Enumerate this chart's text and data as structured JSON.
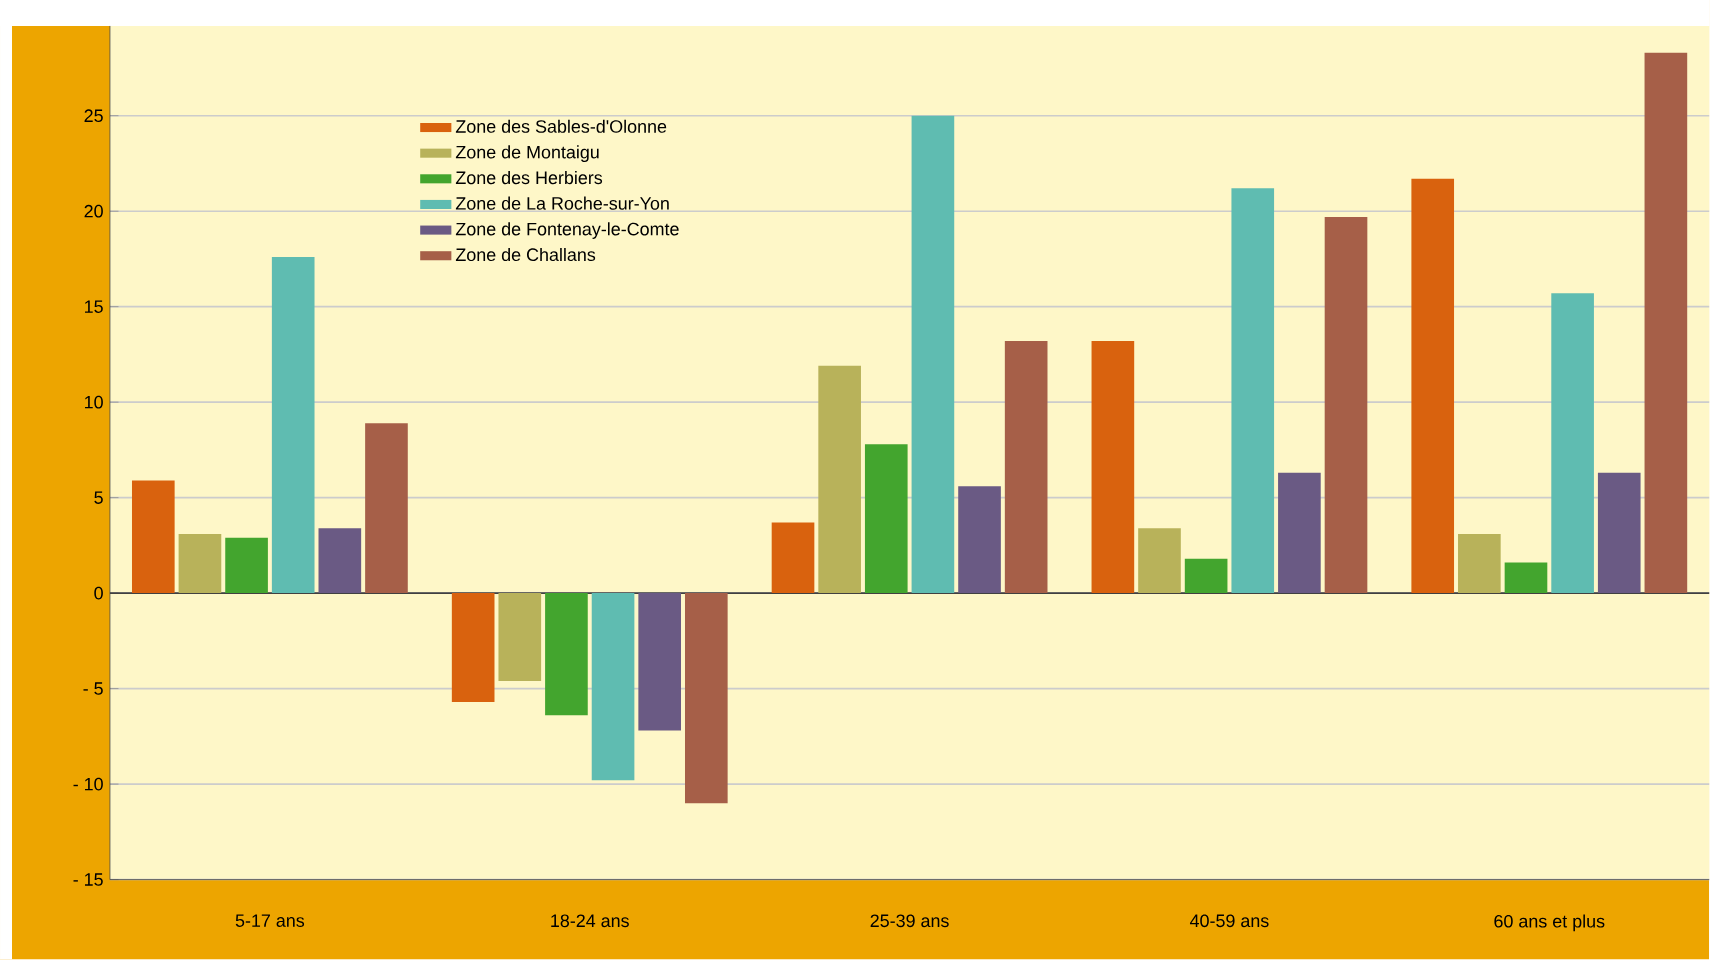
{
  "chart_data": {
    "type": "bar",
    "categories": [
      "5-17 ans",
      "18-24 ans",
      "25-39 ans",
      "40-59 ans",
      "60 ans et plus"
    ],
    "series": [
      {
        "name": "Zone des Sables-d'Olonne",
        "color": "#d9620e",
        "values": [
          5.9,
          -5.7,
          3.7,
          13.2,
          21.7
        ]
      },
      {
        "name": "Zone de Montaigu",
        "color": "#b8b25a",
        "values": [
          3.1,
          -4.6,
          11.9,
          3.4,
          3.1
        ]
      },
      {
        "name": "Zone des Herbiers",
        "color": "#43a52e",
        "values": [
          2.9,
          -6.4,
          7.8,
          1.8,
          1.6
        ]
      },
      {
        "name": "Zone de La Roche-sur-Yon",
        "color": "#5fbcb1",
        "values": [
          17.6,
          -9.8,
          25.0,
          21.2,
          15.7
        ]
      },
      {
        "name": "Zone de Fontenay-le-Comte",
        "color": "#6a5a84",
        "values": [
          3.4,
          -7.2,
          5.6,
          6.3,
          6.3
        ]
      },
      {
        "name": "Zone de Challans",
        "color": "#a65f48",
        "values": [
          8.9,
          -11.0,
          13.2,
          19.7,
          28.3
        ]
      }
    ],
    "ylim": [
      -15,
      29.7
    ],
    "yticks": [
      {
        "value": -15,
        "label": "- 15"
      },
      {
        "value": -10,
        "label": "- 10"
      },
      {
        "value": -5,
        "label": "- 5"
      },
      0,
      5,
      10,
      15,
      20,
      25
    ],
    "grid": "y",
    "legend": "top left"
  }
}
